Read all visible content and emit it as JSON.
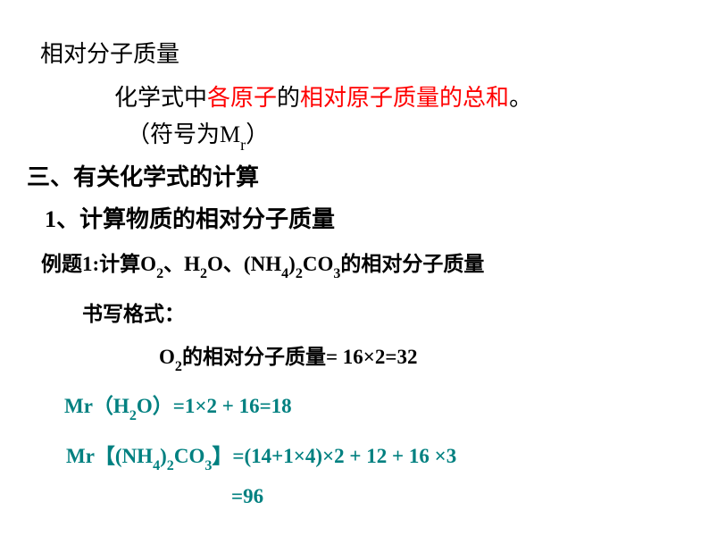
{
  "title": "相对分子质量",
  "definition": {
    "prefix": "化学式中",
    "red1": "各原子",
    "mid": "的",
    "red2": "相对原子质量的总和",
    "suffix": "。"
  },
  "symbol": {
    "prefix": "（符号为M",
    "sub": "r",
    "suffix": "）"
  },
  "sectionHeader": "三、有关化学式的计算",
  "subsection": "1、计算物质的相对分子质量",
  "example": {
    "prefix": "例题1:计算O",
    "s1": "2",
    "p2": "、H",
    "s2": "2",
    "p3": "O、(NH",
    "s3": "4",
    "p4": ")",
    "s4": "2",
    "p5": "CO",
    "s5": "3",
    "suffix": "的相对分子质量"
  },
  "formatLabel": "书写格式：",
  "formula1": {
    "p1": "O",
    "s1": "2",
    "p2": "的相对分子质量=  16×2=32"
  },
  "formula2": {
    "p1": "Mr（H",
    "s1": "2",
    "p2": "O）=1×2 + 16=18"
  },
  "formula3": {
    "p1": "Mr【(NH",
    "s1": "4",
    "p2": ")",
    "s2": "2",
    "p3": "CO",
    "s3": "3",
    "p4": "】=(14+1×4)×2 + 12 + 16 ×3"
  },
  "formula3b": "=96",
  "colors": {
    "black": "#000000",
    "red": "#ff0000",
    "teal": "#008080",
    "background": "#ffffff"
  },
  "fonts": {
    "mainSize": 26,
    "formulaSize": 23
  }
}
